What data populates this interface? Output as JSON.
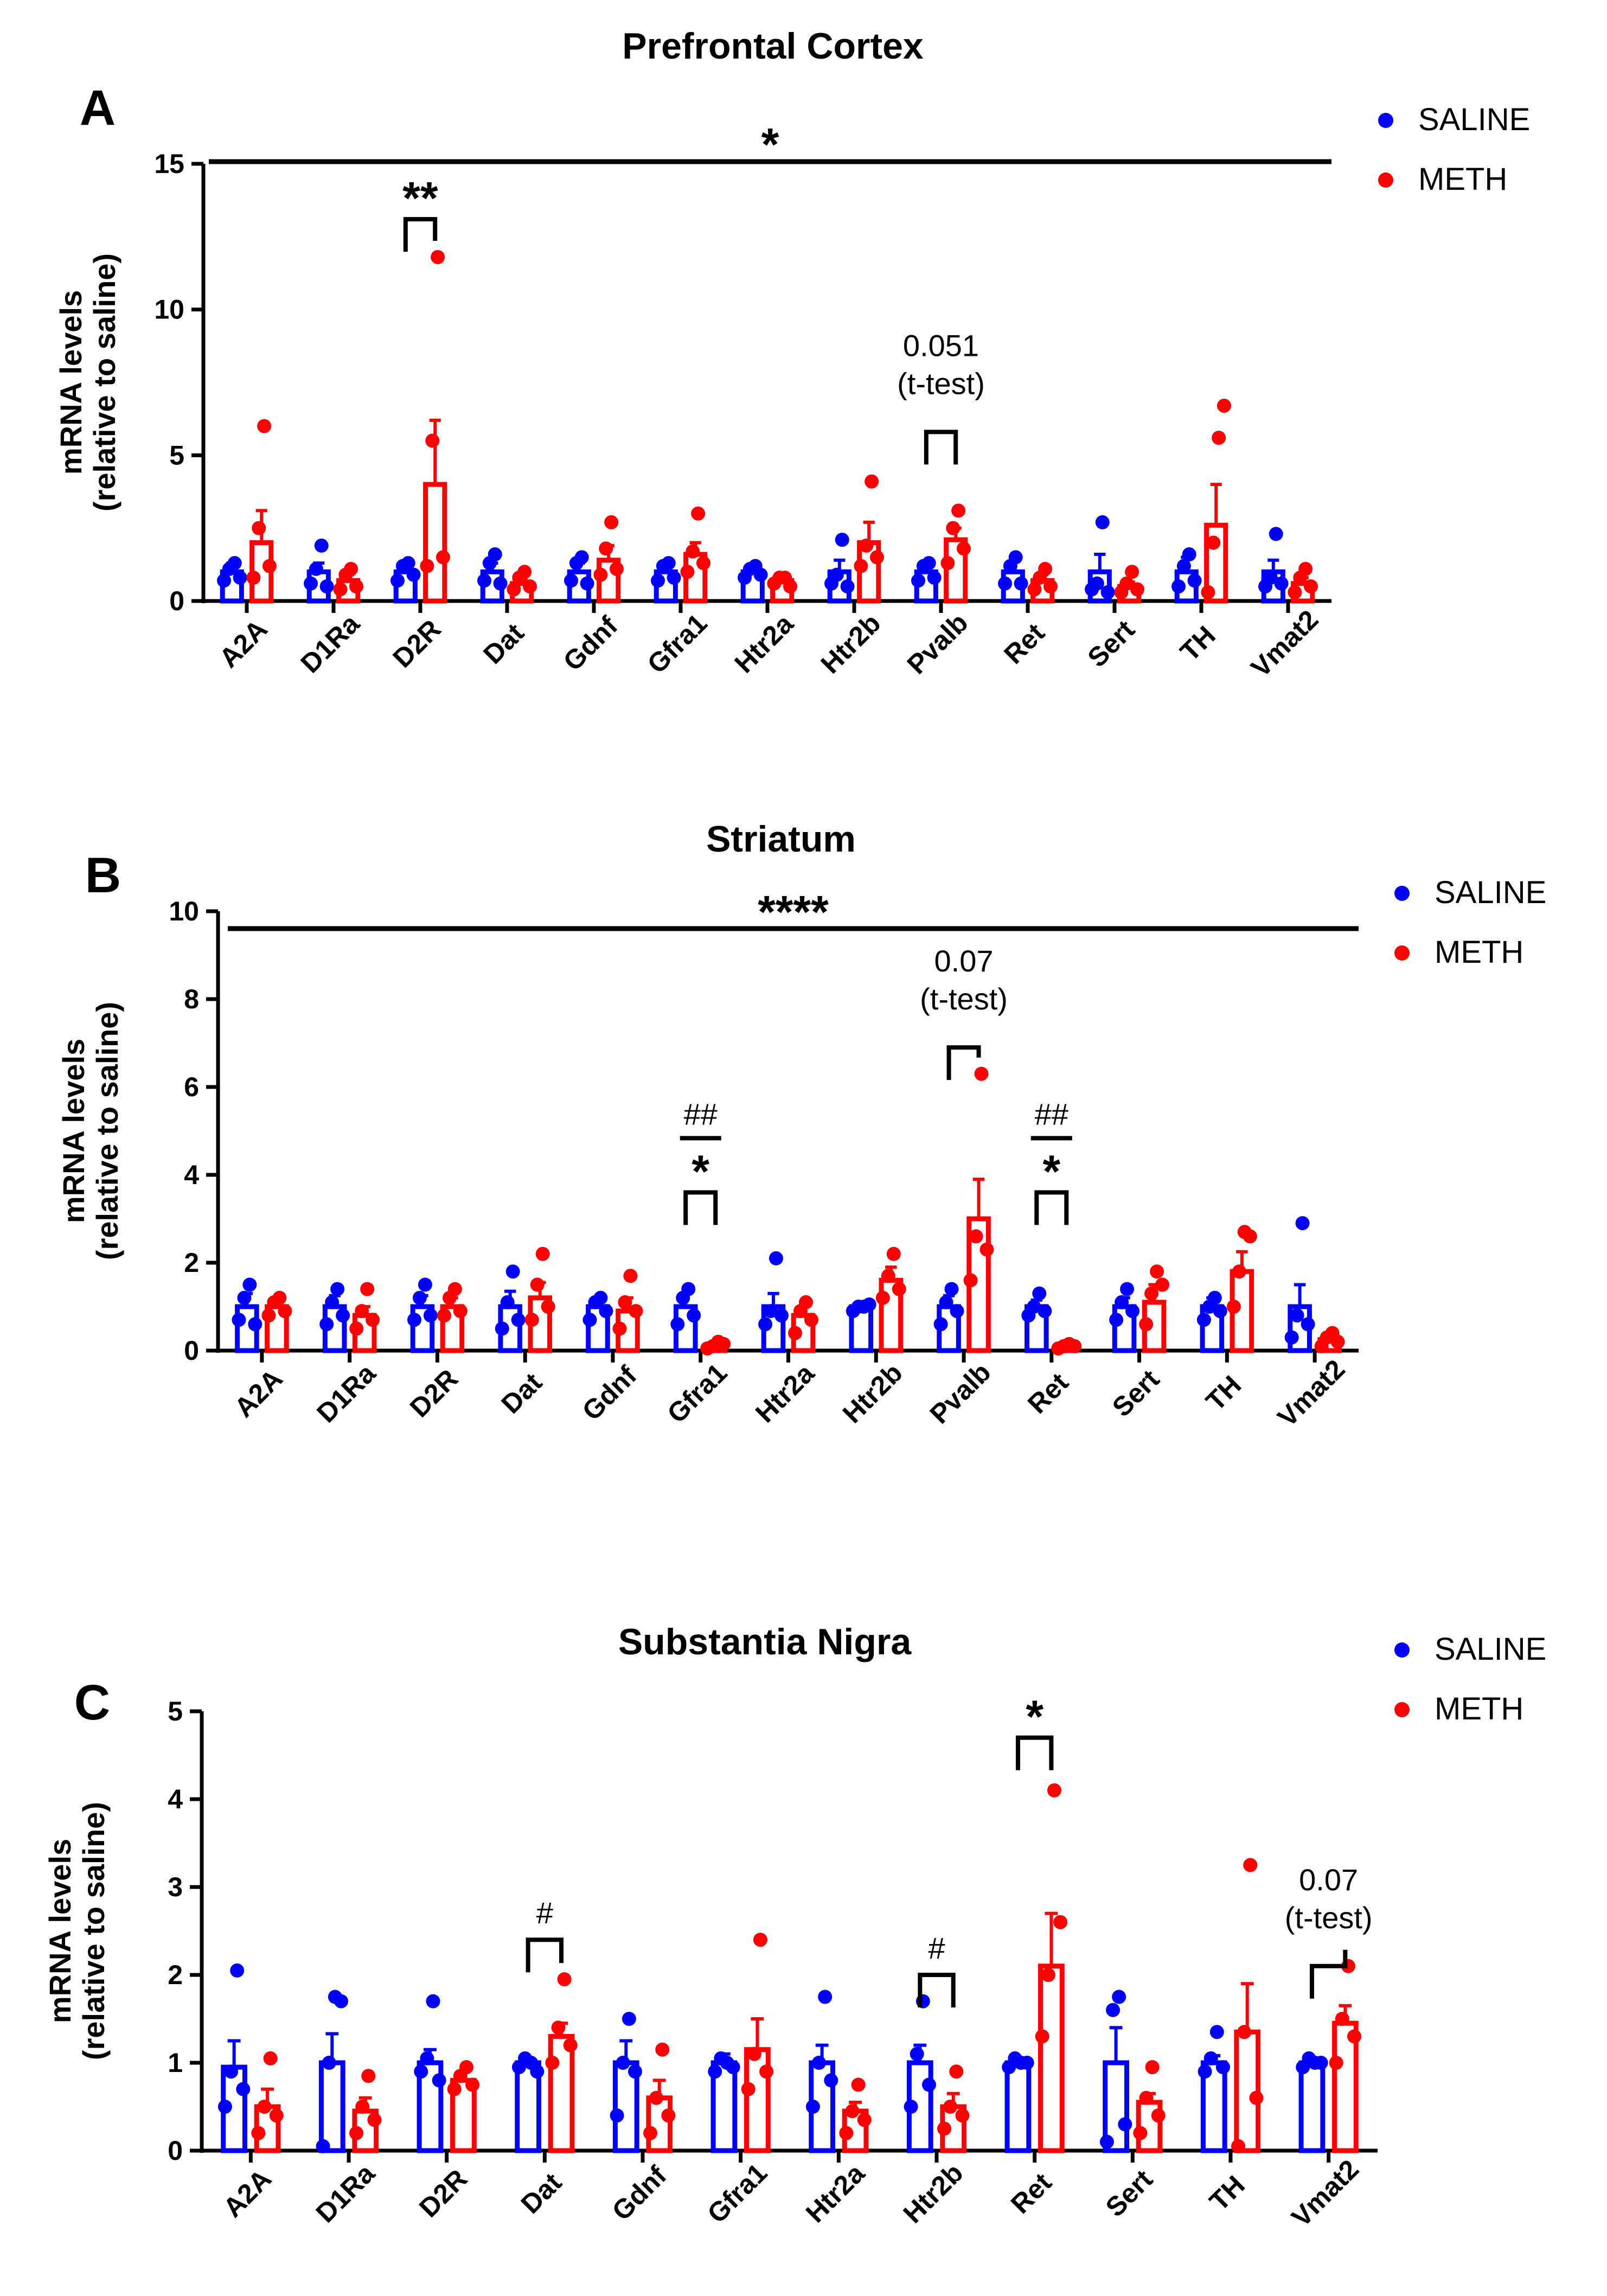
{
  "colors": {
    "saline": "#0000ff",
    "meth": "#ff0000",
    "axis": "#000000"
  },
  "chart_data": [
    {
      "panel": "A",
      "type": "bar",
      "title": "Prefrontal Cortex",
      "ylabel_line1": "mRNA levels",
      "ylabel_line2": "(relative to saline)",
      "ylim": [
        0,
        15
      ],
      "yticks": [
        "0",
        "5",
        "10",
        "15"
      ],
      "categories": [
        "A2A",
        "D1Ra",
        "D2R",
        "Dat",
        "Gdnf",
        "Gfra1",
        "Htr2a",
        "Htr2b",
        "Pvalb",
        "Ret",
        "Sert",
        "TH",
        "Vmat2"
      ],
      "legend": [
        "SALINE",
        "METH"
      ],
      "series": [
        {
          "name": "SALINE",
          "values": [
            1.0,
            1.0,
            1.0,
            1.0,
            1.0,
            1.0,
            1.0,
            1.0,
            1.0,
            1.0,
            1.0,
            1.0,
            1.0
          ],
          "errors": [
            0.3,
            0.3,
            0.25,
            0.3,
            0.3,
            0.25,
            0.2,
            0.4,
            0.25,
            0.35,
            0.6,
            0.5,
            0.4
          ],
          "points": [
            [
              0.7,
              1.1,
              1.3,
              0.8
            ],
            [
              0.6,
              1.1,
              1.9,
              0.5
            ],
            [
              0.7,
              1.2,
              1.3,
              0.9
            ],
            [
              0.7,
              1.3,
              1.6,
              0.6
            ],
            [
              0.7,
              1.3,
              1.5,
              0.6
            ],
            [
              0.7,
              1.2,
              1.3,
              0.8
            ],
            [
              0.8,
              1.1,
              1.2,
              0.9
            ],
            [
              0.6,
              0.9,
              2.1,
              0.5
            ],
            [
              0.7,
              1.2,
              1.3,
              0.8
            ],
            [
              0.6,
              1.2,
              1.5,
              0.6
            ],
            [
              0.4,
              0.6,
              2.7,
              0.3
            ],
            [
              0.5,
              1.2,
              1.6,
              0.7
            ],
            [
              0.5,
              0.8,
              2.3,
              0.6
            ]
          ]
        },
        {
          "name": "METH",
          "values": [
            2.0,
            0.7,
            4.0,
            0.6,
            1.4,
            1.6,
            0.7,
            2.0,
            2.1,
            0.7,
            0.5,
            2.6,
            0.6
          ],
          "errors": [
            1.1,
            0.2,
            2.2,
            0.15,
            0.5,
            0.4,
            0.1,
            0.7,
            0.4,
            0.2,
            0.15,
            1.4,
            0.2
          ],
          "points": [
            [
              0.8,
              2.5,
              6.0,
              1.2
            ],
            [
              0.4,
              0.9,
              1.1,
              0.5
            ],
            [
              1.2,
              5.5,
              11.8,
              1.5
            ],
            [
              0.4,
              0.8,
              1.0,
              0.5
            ],
            [
              0.9,
              1.8,
              2.7,
              1.1
            ],
            [
              1.0,
              1.7,
              3.0,
              1.3
            ],
            [
              0.6,
              0.8,
              0.8,
              0.5
            ],
            [
              1.2,
              1.9,
              4.1,
              1.5
            ],
            [
              1.3,
              2.5,
              3.1,
              1.8
            ],
            [
              0.4,
              0.8,
              1.1,
              0.5
            ],
            [
              0.3,
              0.6,
              1.0,
              0.4
            ],
            [
              0.3,
              2.0,
              5.6,
              6.7
            ],
            [
              0.3,
              0.8,
              1.1,
              0.5
            ]
          ]
        }
      ],
      "significance_line": {
        "label": "*"
      },
      "brackets": [
        {
          "category": "D2R",
          "y": 13.1,
          "label": "**",
          "style": "star"
        },
        {
          "category": "Pvalb",
          "y": 5.8,
          "label": "0.051",
          "label2": "(t-test)",
          "style": "text"
        }
      ]
    },
    {
      "panel": "B",
      "type": "bar",
      "title": "Striatum",
      "ylabel_line1": "mRNA levels",
      "ylabel_line2": "(relative to saline)",
      "ylim": [
        0,
        10
      ],
      "yticks": [
        "0",
        "2",
        "4",
        "6",
        "8",
        "10"
      ],
      "categories": [
        "A2A",
        "D1Ra",
        "D2R",
        "Dat",
        "Gdnf",
        "Gfra1",
        "Htr2a",
        "Htr2b",
        "Pvalb",
        "Ret",
        "Sert",
        "TH",
        "Vmat2"
      ],
      "legend": [
        "SALINE",
        "METH"
      ],
      "series": [
        {
          "name": "SALINE",
          "values": [
            1.0,
            1.0,
            1.0,
            1.0,
            1.0,
            1.0,
            1.0,
            1.0,
            1.0,
            1.0,
            1.0,
            1.0,
            1.0
          ],
          "errors": [
            0.3,
            0.25,
            0.25,
            0.35,
            0.2,
            0.3,
            0.3,
            0.05,
            0.25,
            0.15,
            0.2,
            0.2,
            0.5
          ],
          "points": [
            [
              0.7,
              1.2,
              1.5,
              0.6
            ],
            [
              0.6,
              1.1,
              1.4,
              0.8
            ],
            [
              0.7,
              1.2,
              1.5,
              0.8
            ],
            [
              0.5,
              1.1,
              1.8,
              0.7
            ],
            [
              0.7,
              1.1,
              1.2,
              0.9
            ],
            [
              0.6,
              1.2,
              1.4,
              0.8
            ],
            [
              0.6,
              0.9,
              2.1,
              0.8
            ],
            [
              0.9,
              1.0,
              1.0,
              1.05
            ],
            [
              0.6,
              1.1,
              1.4,
              0.9
            ],
            [
              0.8,
              1.0,
              1.3,
              0.9
            ],
            [
              0.7,
              1.1,
              1.4,
              0.9
            ],
            [
              0.7,
              1.0,
              1.2,
              0.9
            ],
            [
              0.3,
              0.8,
              2.9,
              0.6
            ]
          ]
        },
        {
          "name": "METH",
          "values": [
            1.0,
            0.8,
            1.0,
            1.2,
            0.9,
            0.1,
            0.8,
            1.6,
            3.0,
            0.1,
            1.1,
            1.8,
            0.25
          ],
          "errors": [
            0.15,
            0.2,
            0.2,
            0.35,
            0.3,
            0.05,
            0.2,
            0.3,
            0.9,
            0.05,
            0.4,
            0.45,
            0.1
          ],
          "points": [
            [
              0.8,
              1.1,
              1.2,
              0.9
            ],
            [
              0.5,
              0.9,
              1.4,
              0.7
            ],
            [
              0.8,
              1.2,
              1.4,
              0.9
            ],
            [
              0.7,
              1.5,
              2.2,
              1.0
            ],
            [
              0.5,
              1.1,
              1.7,
              0.9
            ],
            [
              0.05,
              0.1,
              0.2,
              0.15
            ],
            [
              0.4,
              0.9,
              1.1,
              0.7
            ],
            [
              1.2,
              1.7,
              2.2,
              1.4
            ],
            [
              1.6,
              2.6,
              6.3,
              2.3
            ],
            [
              0.05,
              0.1,
              0.15,
              0.1
            ],
            [
              0.6,
              1.3,
              1.8,
              1.5
            ],
            [
              1.0,
              1.8,
              2.7,
              2.6
            ],
            [
              0.1,
              0.3,
              0.4,
              0.2
            ]
          ]
        }
      ],
      "significance_line": {
        "label": "****"
      },
      "brackets": [
        {
          "category": "Gfra1",
          "y": 3.6,
          "label": "*",
          "style": "star",
          "label_top": "##"
        },
        {
          "category": "Pvalb",
          "y": 6.9,
          "label": "0.07",
          "label2": "(t-test)",
          "style": "text"
        },
        {
          "category": "Ret",
          "y": 3.6,
          "label": "*",
          "style": "star",
          "label_top": "##"
        }
      ]
    },
    {
      "panel": "C",
      "type": "bar",
      "title": "Substantia Nigra",
      "ylabel_line1": "mRNA levels",
      "ylabel_line2": "(relative to saline)",
      "ylim": [
        0,
        5
      ],
      "yticks": [
        "0",
        "1",
        "2",
        "3",
        "4",
        "5"
      ],
      "categories": [
        "A2A",
        "D1Ra",
        "D2R",
        "Dat",
        "Gdnf",
        "Gfra1",
        "Htr2a",
        "Htr2b",
        "Ret",
        "Sert",
        "TH",
        "Vmat2"
      ],
      "legend": [
        "SALINE",
        "METH"
      ],
      "series": [
        {
          "name": "SALINE",
          "values": [
            0.95,
            1.0,
            1.0,
            1.0,
            1.0,
            1.0,
            1.0,
            1.0,
            1.0,
            1.0,
            1.0,
            1.0
          ],
          "errors": [
            0.3,
            0.33,
            0.15,
            0.05,
            0.25,
            0.1,
            0.2,
            0.2,
            0.04,
            0.4,
            0.08,
            0.03
          ],
          "points": [
            [
              0.5,
              0.9,
              2.05,
              0.7
            ],
            [
              0.05,
              1.0,
              1.75,
              1.7
            ],
            [
              0.9,
              1.05,
              1.7,
              0.8
            ],
            [
              0.95,
              1.05,
              1.0,
              0.9
            ],
            [
              0.4,
              1.0,
              1.5,
              0.9
            ],
            [
              0.9,
              1.05,
              1.0,
              0.95
            ],
            [
              0.5,
              1.0,
              1.75,
              0.8
            ],
            [
              0.5,
              1.1,
              1.7,
              0.75
            ],
            [
              0.95,
              1.05,
              1.0,
              1.0
            ],
            [
              0.1,
              1.6,
              1.75,
              0.3
            ],
            [
              0.9,
              1.05,
              1.35,
              0.95
            ],
            [
              0.95,
              1.05,
              1.0,
              1.0
            ]
          ]
        },
        {
          "name": "METH",
          "values": [
            0.5,
            0.45,
            0.8,
            1.3,
            0.6,
            1.15,
            0.45,
            0.5,
            2.1,
            0.55,
            1.35,
            1.45
          ],
          "errors": [
            0.2,
            0.15,
            0.1,
            0.15,
            0.2,
            0.35,
            0.1,
            0.15,
            0.6,
            0.1,
            0.55,
            0.2
          ],
          "points": [
            [
              0.2,
              0.5,
              1.05,
              0.4
            ],
            [
              0.2,
              0.5,
              0.85,
              0.35
            ],
            [
              0.7,
              0.85,
              0.95,
              0.75
            ],
            [
              1.0,
              1.4,
              1.95,
              1.2
            ],
            [
              0.2,
              0.6,
              1.15,
              0.4
            ],
            [
              0.7,
              1.1,
              2.4,
              0.9
            ],
            [
              0.2,
              0.45,
              0.75,
              0.35
            ],
            [
              0.25,
              0.5,
              0.9,
              0.4
            ],
            [
              1.3,
              2.0,
              4.1,
              2.6
            ],
            [
              0.2,
              0.6,
              0.95,
              0.4
            ],
            [
              0.05,
              1.35,
              3.25,
              0.6
            ],
            [
              1.0,
              1.5,
              2.1,
              1.3
            ]
          ]
        }
      ],
      "brackets": [
        {
          "category": "Dat",
          "y": 2.4,
          "label": "#",
          "style": "text-small"
        },
        {
          "category": "Htr2b",
          "y": 2.0,
          "label": "#",
          "style": "text-small"
        },
        {
          "category": "Ret",
          "y": 4.7,
          "label": "*",
          "style": "star"
        },
        {
          "category": "Vmat2",
          "y": 2.1,
          "label": "0.07",
          "label2": "(t-test)",
          "style": "text"
        }
      ]
    }
  ]
}
